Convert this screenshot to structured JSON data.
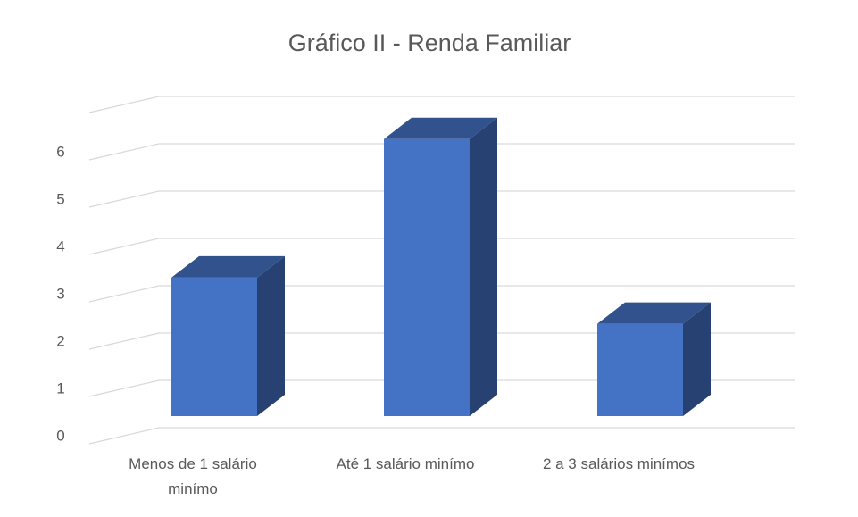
{
  "chart_data": {
    "type": "bar3d",
    "title": "Gráfico II - Renda Familiar",
    "categories": [
      "Menos de 1 salário minímo",
      "Até 1 salário minímo",
      "2 a 3 salários minímos"
    ],
    "values": [
      3,
      6,
      2
    ],
    "color": "#4472c4",
    "ylim": [
      0,
      7
    ],
    "yticks": [
      0,
      1,
      2,
      3,
      4,
      5,
      6
    ],
    "grid": true
  }
}
